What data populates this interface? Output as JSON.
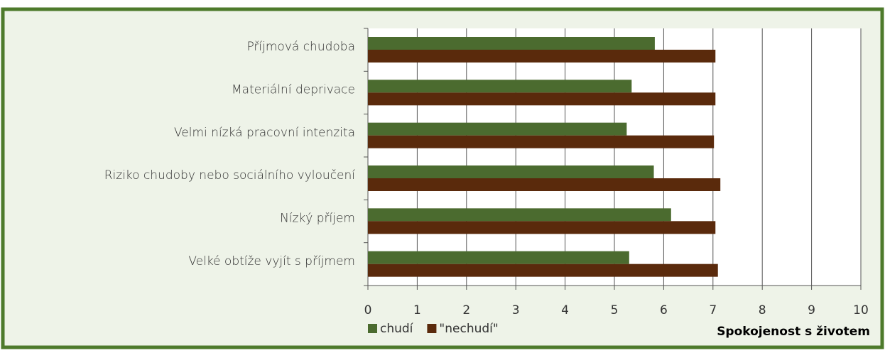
{
  "chart_data": {
    "type": "bar",
    "orientation": "horizontal",
    "x_label": "Spokojenost s životem",
    "categories": [
      "Příjmová chudoba",
      "Materiální deprivace",
      "Velmi nízká pracovní intenzita",
      "Riziko chudoby nebo sociálního vyloučení",
      "Nízký příjem",
      "Velké obtíže vyjít s příjmem"
    ],
    "series": [
      {
        "name": "chudí",
        "color": "#4b6b2f",
        "values": [
          5.82,
          5.35,
          5.25,
          5.8,
          6.15,
          5.3
        ]
      },
      {
        "name": "\"nechudí\"",
        "color": "#5a2a0c",
        "values": [
          7.05,
          7.05,
          7.02,
          7.15,
          7.05,
          7.1
        ]
      }
    ],
    "xlim": [
      0,
      10
    ],
    "xticks": [
      0,
      1,
      2,
      3,
      4,
      5,
      6,
      7,
      8,
      9,
      10
    ],
    "grid": true
  }
}
